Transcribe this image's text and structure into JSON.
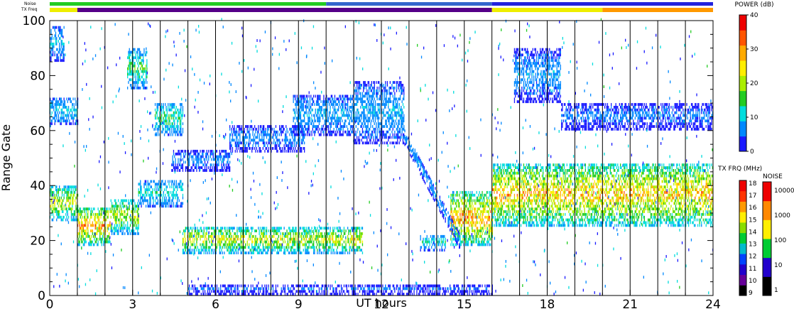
{
  "chart_data": {
    "type": "heatmap",
    "title": "",
    "xlabel": "UT hours",
    "ylabel": "Range Gate",
    "xlim": [
      0,
      24
    ],
    "ylim": [
      0,
      100
    ],
    "x_ticks": [
      "0",
      "3",
      "6",
      "9",
      "12",
      "15",
      "18",
      "21",
      "24"
    ],
    "y_ticks": [
      "0",
      "20",
      "40",
      "60",
      "80",
      "100"
    ],
    "grid_hours": [
      1,
      2,
      3,
      4,
      5,
      6,
      7,
      8,
      9,
      10,
      11,
      12,
      13,
      14,
      15,
      16,
      17,
      18,
      19,
      20,
      21,
      22,
      23
    ],
    "strip_labels": {
      "noise": "Noise",
      "txfreq": "TX Freq"
    },
    "power_scale": {
      "title": "POWER (dB)",
      "range": [
        0,
        40
      ],
      "ticks": [
        "0",
        "10",
        "20",
        "30",
        "40"
      ],
      "colors": [
        "#1a1aff",
        "#0088ff",
        "#00dddd",
        "#22cc22",
        "#aaee00",
        "#ffee00",
        "#ffaa00",
        "#ff5500",
        "#ee0000"
      ]
    },
    "txfreq_scale": {
      "title": "TX FRQ (MHz)",
      "ticks": [
        "9",
        "10",
        "11",
        "12",
        "13",
        "14",
        "15",
        "16",
        "17",
        "18"
      ],
      "colors": [
        "#000000",
        "#660099",
        "#2200cc",
        "#0044ff",
        "#00bbcc",
        "#00cc33",
        "#88dd00",
        "#ffee00",
        "#ff9900",
        "#ff3300",
        "#ee0000"
      ]
    },
    "noise_scale": {
      "title": "NOISE",
      "ticks": [
        "1",
        "10",
        "100",
        "1000",
        "10000"
      ],
      "colors": [
        "#000000",
        "#2200cc",
        "#00cc33",
        "#ffee00",
        "#ff8800",
        "#ee0000"
      ]
    },
    "txfreq_strip": [
      {
        "start": 0,
        "end": 1,
        "color": "#eeee00"
      },
      {
        "start": 1,
        "end": 16,
        "color": "#550088"
      },
      {
        "start": 16,
        "end": 20,
        "color": "#eeee00"
      },
      {
        "start": 20,
        "end": 24,
        "color": "#ff9900"
      }
    ],
    "noise_strip": [
      {
        "start": 0,
        "end": 10,
        "color": "#22cc22"
      },
      {
        "start": 10,
        "end": 16,
        "color": "#3366cc"
      },
      {
        "start": 16,
        "end": 24,
        "color": "#2222dd"
      }
    ],
    "regions": [
      {
        "t0": 0.0,
        "t1": 1.0,
        "g0": 27,
        "g1": 40,
        "max": 26
      },
      {
        "t0": 1.0,
        "t1": 2.2,
        "g0": 18,
        "g1": 32,
        "max": 34
      },
      {
        "t0": 2.2,
        "t1": 3.2,
        "g0": 22,
        "g1": 35,
        "max": 25
      },
      {
        "t0": 3.2,
        "t1": 4.8,
        "g0": 32,
        "g1": 42,
        "max": 14
      },
      {
        "t0": 2.8,
        "t1": 3.5,
        "g0": 75,
        "g1": 90,
        "max": 18
      },
      {
        "t0": 3.8,
        "t1": 4.8,
        "g0": 58,
        "g1": 70,
        "max": 17
      },
      {
        "t0": 0.0,
        "t1": 0.5,
        "g0": 85,
        "g1": 98,
        "max": 11
      },
      {
        "t0": 0.0,
        "t1": 1.0,
        "g0": 62,
        "g1": 72,
        "max": 12
      },
      {
        "t0": 4.8,
        "t1": 11.3,
        "g0": 15,
        "g1": 25,
        "max": 26
      },
      {
        "t0": 4.4,
        "t1": 6.5,
        "g0": 45,
        "g1": 53,
        "max": 8
      },
      {
        "t0": 6.5,
        "t1": 9.2,
        "g0": 52,
        "g1": 62,
        "max": 8
      },
      {
        "t0": 8.8,
        "t1": 11.0,
        "g0": 58,
        "g1": 73,
        "max": 10
      },
      {
        "t0": 11.0,
        "t1": 12.8,
        "g0": 55,
        "g1": 78,
        "max": 10
      },
      {
        "t0": 13.4,
        "t1": 14.3,
        "g0": 16,
        "g1": 22,
        "max": 14
      },
      {
        "t0": 14.5,
        "t1": 16.0,
        "g0": 18,
        "g1": 38,
        "max": 34
      },
      {
        "t0": 16.0,
        "t1": 24.0,
        "g0": 25,
        "g1": 48,
        "max": 32
      },
      {
        "t0": 16.8,
        "t1": 18.5,
        "g0": 70,
        "g1": 90,
        "max": 9
      },
      {
        "t0": 18.5,
        "t1": 24.0,
        "g0": 60,
        "g1": 70,
        "max": 7
      },
      {
        "t0": 5.0,
        "t1": 16.0,
        "g0": 0,
        "g1": 4,
        "max": 6
      }
    ],
    "slant_track": {
      "t0": 12.8,
      "t1": 14.8,
      "g0": 58,
      "g1": 20,
      "max": 9
    }
  }
}
